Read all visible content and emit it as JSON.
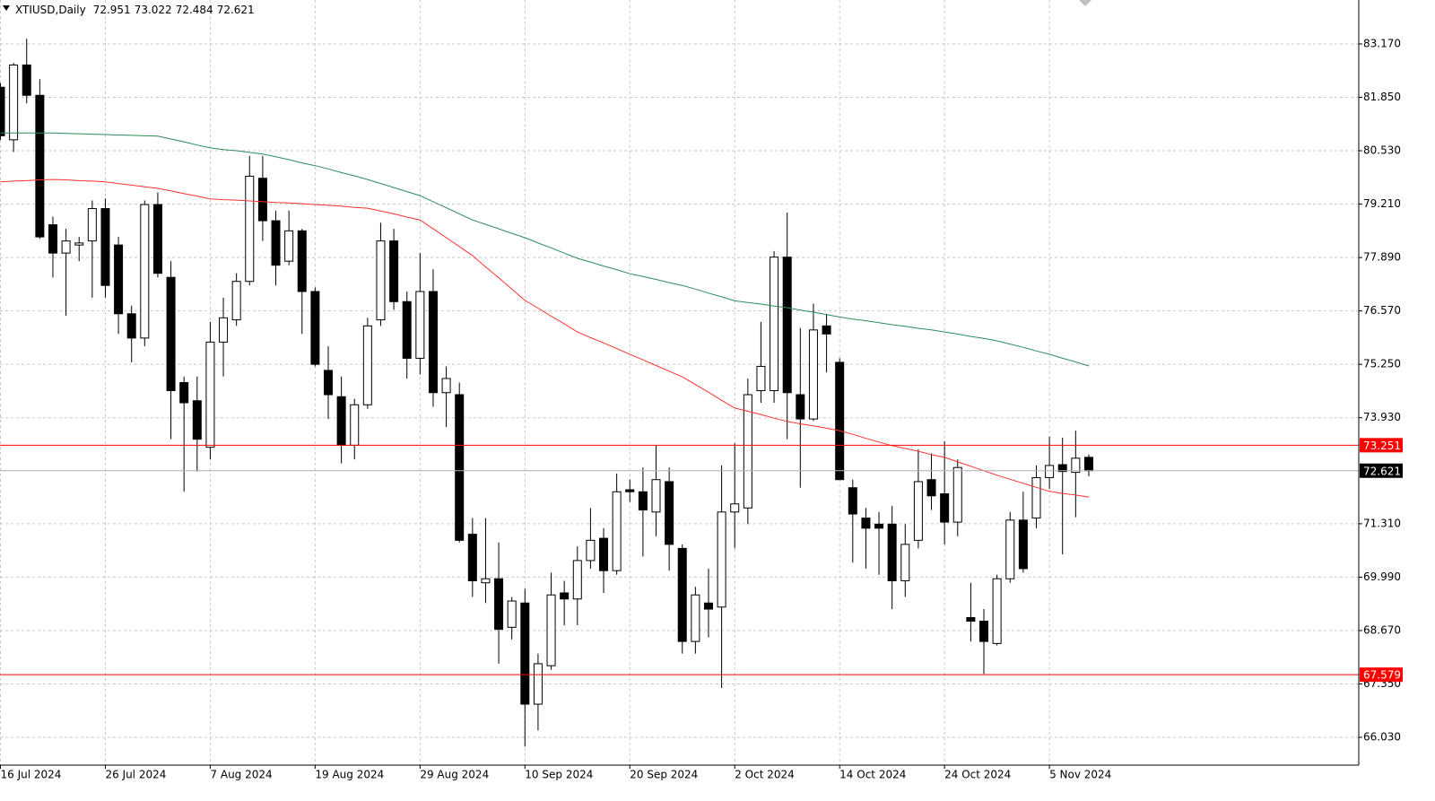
{
  "chart_data": {
    "type": "candlestick",
    "header": {
      "symbol": "XTIUSD,Daily",
      "ohlc": [
        "72.951",
        "73.022",
        "72.484",
        "72.621"
      ]
    },
    "categories": [
      "16 Jul 2024",
      null,
      null,
      null,
      null,
      null,
      null,
      null,
      "26 Jul 2024",
      null,
      null,
      null,
      null,
      null,
      null,
      null,
      "7 Aug 2024",
      null,
      null,
      null,
      null,
      null,
      null,
      null,
      "19 Aug 2024",
      null,
      null,
      null,
      null,
      null,
      null,
      null,
      "29 Aug 2024",
      null,
      null,
      null,
      null,
      null,
      null,
      null,
      "10 Sep 2024",
      null,
      null,
      null,
      null,
      null,
      null,
      null,
      "20 Sep 2024",
      null,
      null,
      null,
      null,
      null,
      null,
      null,
      "2 Oct 2024",
      null,
      null,
      null,
      null,
      null,
      null,
      null,
      "14 Oct 2024",
      null,
      null,
      null,
      null,
      null,
      null,
      null,
      "24 Oct 2024",
      null,
      null,
      null,
      null,
      null,
      null,
      null,
      "5 Nov 2024",
      null,
      null,
      null
    ],
    "open": [
      82.1,
      80.8,
      82.65,
      81.9,
      78.7,
      78.0,
      78.2,
      78.3,
      79.1,
      78.2,
      76.5,
      75.9,
      79.2,
      77.4,
      74.8,
      74.35,
      73.2,
      75.8,
      76.35,
      77.3,
      79.85,
      78.8,
      77.8,
      78.55,
      77.05,
      75.1,
      74.45,
      73.25,
      74.25,
      76.35,
      78.3,
      76.8,
      75.4,
      77.05,
      74.55,
      74.5,
      71.05,
      69.85,
      69.95,
      68.75,
      69.35,
      66.85,
      67.8,
      69.6,
      69.45,
      70.4,
      70.95,
      70.15,
      72.15,
      72.1,
      71.6,
      72.35,
      70.7,
      68.4,
      69.35,
      69.25,
      71.6,
      71.7,
      74.6,
      74.6,
      77.9,
      74.5,
      73.9,
      76.2,
      75.3,
      72.2,
      71.45,
      71.3,
      71.3,
      69.9,
      70.9,
      72.4,
      72.05,
      71.35,
      68.99,
      68.9,
      68.35,
      69.95,
      71.4,
      71.45,
      72.45,
      72.77,
      72.58,
      72.951
    ],
    "high": [
      82.2,
      82.7,
      83.3,
      82.3,
      78.9,
      78.6,
      78.4,
      79.3,
      79.35,
      78.4,
      76.7,
      79.3,
      79.5,
      77.8,
      74.95,
      74.95,
      76.3,
      76.9,
      77.5,
      80.4,
      80.4,
      79.05,
      79.05,
      78.6,
      77.15,
      75.7,
      74.95,
      74.4,
      76.4,
      78.75,
      78.6,
      77.05,
      78.0,
      77.6,
      75.2,
      74.8,
      71.45,
      71.45,
      70.85,
      69.5,
      69.7,
      68.1,
      70.1,
      69.9,
      70.75,
      71.7,
      71.2,
      72.55,
      72.4,
      72.7,
      73.25,
      72.7,
      70.8,
      69.75,
      70.2,
      72.75,
      73.3,
      74.9,
      76.3,
      78.05,
      79.0,
      76.15,
      76.75,
      76.5,
      75.4,
      72.4,
      71.7,
      71.6,
      71.75,
      71.3,
      73.15,
      73.05,
      73.35,
      72.9,
      69.85,
      69.2,
      70.05,
      71.6,
      72.1,
      72.75,
      73.46,
      73.44,
      73.61,
      73.022
    ],
    "low": [
      80.8,
      80.5,
      81.7,
      78.35,
      77.4,
      76.45,
      77.8,
      76.9,
      76.9,
      76.0,
      75.3,
      75.7,
      77.4,
      73.4,
      72.1,
      72.6,
      72.9,
      74.95,
      76.2,
      77.2,
      78.3,
      77.2,
      77.7,
      76.0,
      75.2,
      73.9,
      72.8,
      72.9,
      74.15,
      76.2,
      76.6,
      74.9,
      75.0,
      74.2,
      73.7,
      70.85,
      69.5,
      69.35,
      67.85,
      68.45,
      65.8,
      66.2,
      67.7,
      68.8,
      68.8,
      70.2,
      69.6,
      70.05,
      71.85,
      70.5,
      71.0,
      70.15,
      68.1,
      68.1,
      68.5,
      67.25,
      70.7,
      71.3,
      74.3,
      74.3,
      73.4,
      72.2,
      73.85,
      75.05,
      72.4,
      70.35,
      70.2,
      70.05,
      69.2,
      69.5,
      70.7,
      71.65,
      70.8,
      71.0,
      68.4,
      67.6,
      68.3,
      69.85,
      70.1,
      71.2,
      72.17,
      70.55,
      71.47,
      72.484
    ],
    "close": [
      80.9,
      82.65,
      81.9,
      78.4,
      78.0,
      78.3,
      78.25,
      79.1,
      77.2,
      76.5,
      75.9,
      79.2,
      77.5,
      74.6,
      74.3,
      73.4,
      75.8,
      76.4,
      77.3,
      79.9,
      78.8,
      77.7,
      78.55,
      77.05,
      75.25,
      74.5,
      73.25,
      74.25,
      76.2,
      78.3,
      76.8,
      75.4,
      77.05,
      74.55,
      74.9,
      70.9,
      69.9,
      69.95,
      68.7,
      69.4,
      66.85,
      67.85,
      69.55,
      69.45,
      70.4,
      70.9,
      70.15,
      72.1,
      72.1,
      71.65,
      72.4,
      70.8,
      68.4,
      69.55,
      69.2,
      71.6,
      71.8,
      74.5,
      75.2,
      77.9,
      74.55,
      73.9,
      76.1,
      76.0,
      72.4,
      71.55,
      71.2,
      71.2,
      69.9,
      70.8,
      72.35,
      72.0,
      71.35,
      72.7,
      68.9,
      68.4,
      69.95,
      71.4,
      70.2,
      72.45,
      72.75,
      72.6,
      72.93,
      72.621
    ],
    "series": [
      {
        "color": "#2e8b57",
        "values": [
          80.97,
          80.97,
          80.97,
          80.97,
          80.97,
          80.96,
          80.95,
          80.94,
          80.93,
          80.92,
          80.91,
          80.9,
          80.89,
          80.82,
          80.75,
          80.67,
          80.6,
          80.56,
          80.53,
          80.49,
          80.45,
          80.38,
          80.31,
          80.23,
          80.16,
          80.08,
          79.99,
          79.91,
          79.82,
          79.72,
          79.62,
          79.52,
          79.42,
          79.27,
          79.12,
          78.97,
          78.82,
          78.71,
          78.6,
          78.49,
          78.38,
          78.25,
          78.13,
          78.0,
          77.87,
          77.78,
          77.68,
          77.59,
          77.49,
          77.42,
          77.35,
          77.27,
          77.2,
          77.11,
          77.01,
          76.92,
          76.82,
          76.78,
          76.74,
          76.69,
          76.65,
          76.59,
          76.54,
          76.48,
          76.42,
          76.37,
          76.33,
          76.28,
          76.23,
          76.19,
          76.14,
          76.1,
          76.05,
          76.0,
          75.94,
          75.89,
          75.83,
          75.75,
          75.67,
          75.58,
          75.5,
          75.4,
          75.31,
          75.21
        ]
      },
      {
        "color": "#ff3030",
        "values": [
          79.76,
          79.78,
          79.79,
          79.81,
          79.82,
          79.81,
          79.79,
          79.78,
          79.76,
          79.72,
          79.68,
          79.64,
          79.6,
          79.54,
          79.47,
          79.41,
          79.34,
          79.32,
          79.31,
          79.29,
          79.27,
          79.25,
          79.24,
          79.22,
          79.2,
          79.18,
          79.16,
          79.13,
          79.11,
          79.04,
          78.97,
          78.89,
          78.82,
          78.6,
          78.38,
          78.16,
          77.94,
          77.66,
          77.39,
          77.11,
          76.83,
          76.64,
          76.44,
          76.25,
          76.05,
          75.91,
          75.78,
          75.64,
          75.5,
          75.36,
          75.22,
          75.08,
          74.94,
          74.75,
          74.56,
          74.36,
          74.17,
          74.09,
          74.01,
          73.92,
          73.84,
          73.78,
          73.73,
          73.67,
          73.61,
          73.52,
          73.42,
          73.33,
          73.24,
          73.17,
          73.1,
          73.02,
          72.95,
          72.84,
          72.73,
          72.62,
          72.51,
          72.41,
          72.31,
          72.21,
          72.11,
          72.06,
          72.02,
          71.97
        ]
      }
    ],
    "levels": [
      {
        "value": 73.251,
        "label": "73.251",
        "color": "#ff0000"
      },
      {
        "value": 67.579,
        "label": "67.579",
        "color": "#ff0000"
      }
    ],
    "last_price": {
      "value": 72.621,
      "label": "72.621",
      "color": "#000000"
    },
    "ylim": [
      65.343,
      84.256
    ],
    "yticks": [
      {
        "value": 83.17,
        "label": "83.170"
      },
      {
        "value": 81.85,
        "label": "81.850"
      },
      {
        "value": 80.53,
        "label": "80.530"
      },
      {
        "value": 79.21,
        "label": "79.210"
      },
      {
        "value": 77.89,
        "label": "77.890"
      },
      {
        "value": 76.57,
        "label": "76.570"
      },
      {
        "value": 75.25,
        "label": "75.250"
      },
      {
        "value": 73.93,
        "label": "73.930"
      },
      {
        "value": 71.31,
        "label": "71.310"
      },
      {
        "value": 69.99,
        "label": "69.990"
      },
      {
        "value": 68.67,
        "label": "68.670"
      },
      {
        "value": 67.35,
        "label": "67.350"
      },
      {
        "value": 66.03,
        "label": "66.030"
      }
    ],
    "grid": true
  }
}
